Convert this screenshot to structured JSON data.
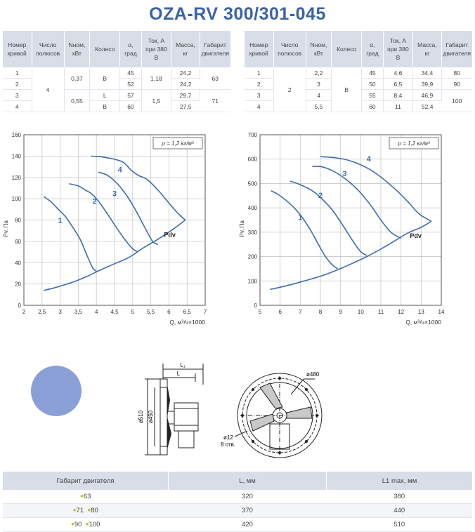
{
  "title": "OZA-RV 300/301-045",
  "table_left": {
    "headers": [
      "Номер кривой",
      "Число полюсов",
      "Nном, кВт",
      "Колесо",
      "α, град",
      "Ток, А при 380 В",
      "Масса, кг",
      "Габарит двигателя"
    ],
    "curve": [
      "1",
      "2",
      "3",
      "4"
    ],
    "poles": "4",
    "power": [
      "0,37",
      "0,55"
    ],
    "wheel": [
      "B",
      "L",
      "B"
    ],
    "angle": [
      "45",
      "52",
      "57",
      "60"
    ],
    "current": [
      "1,18",
      "1,5"
    ],
    "mass": [
      "24,2",
      "24,2",
      "29,7",
      "27,5"
    ],
    "frame": [
      "63",
      "71"
    ]
  },
  "table_right": {
    "headers": [
      "Номер кривой",
      "Число полюсов",
      "Nном, кВт",
      "Колесо",
      "α, град",
      "Ток, А при 380 В",
      "Масса, кг",
      "Габарит двигателя"
    ],
    "curve": [
      "1",
      "2",
      "3",
      "4"
    ],
    "poles": "2",
    "power": [
      "2,2",
      "3",
      "4",
      "5,5"
    ],
    "wheel": "B",
    "angle": [
      "45",
      "50",
      "55",
      "60"
    ],
    "current": [
      "4,6",
      "6,5",
      "8,4",
      "11"
    ],
    "mass": [
      "34,4",
      "39,9",
      "46,9",
      "52,4"
    ],
    "frame": [
      "80",
      "90",
      "100"
    ]
  },
  "chart_data": [
    {
      "type": "line",
      "xlabel": "Q, м³/ч×1000",
      "ylabel": "Pv, Па",
      "xlim": [
        2,
        7
      ],
      "ylim": [
        0,
        160
      ],
      "xticks": [
        "2",
        "2,5",
        "3",
        "3,5",
        "4",
        "4,5",
        "5",
        "5,5",
        "6",
        "6,5",
        "7"
      ],
      "yticks": [
        "0",
        "20",
        "40",
        "60",
        "80",
        "100",
        "120",
        "140",
        "160"
      ],
      "density_label": "ρ = 1,2 кг/м³",
      "grid": true,
      "series": [
        {
          "name": "1",
          "points": [
            [
              2.55,
              102
            ],
            [
              2.75,
              97
            ],
            [
              2.95,
              90
            ],
            [
              3.15,
              83
            ],
            [
              3.35,
              73
            ],
            [
              3.55,
              62
            ],
            [
              3.75,
              46
            ],
            [
              3.9,
              35
            ],
            [
              4.0,
              32
            ]
          ]
        },
        {
          "name": "2",
          "points": [
            [
              3.25,
              114
            ],
            [
              3.5,
              112
            ],
            [
              3.7,
              108
            ],
            [
              3.85,
              105
            ],
            [
              4.05,
              98
            ],
            [
              4.3,
              86
            ],
            [
              4.55,
              73
            ],
            [
              4.8,
              61
            ],
            [
              5.0,
              53
            ],
            [
              5.15,
              50
            ]
          ]
        },
        {
          "name": "3",
          "points": [
            [
              4.05,
              125
            ],
            [
              4.3,
              122
            ],
            [
              4.55,
              115
            ],
            [
              4.75,
              107
            ],
            [
              4.95,
              97
            ],
            [
              5.15,
              85
            ],
            [
              5.35,
              72
            ],
            [
              5.55,
              60
            ],
            [
              5.7,
              57
            ]
          ]
        },
        {
          "name": "4",
          "points": [
            [
              3.85,
              140
            ],
            [
              4.2,
              139
            ],
            [
              4.5,
              137
            ],
            [
              4.75,
              134
            ],
            [
              4.95,
              127
            ],
            [
              5.15,
              122
            ],
            [
              5.4,
              118
            ],
            [
              5.7,
              108
            ],
            [
              5.95,
              98
            ],
            [
              6.2,
              88
            ],
            [
              6.45,
              80
            ]
          ]
        },
        {
          "name": "Pdv",
          "points": [
            [
              2.55,
              14
            ],
            [
              2.8,
              16
            ],
            [
              3.1,
              19
            ],
            [
              3.45,
              23
            ],
            [
              3.8,
              28
            ],
            [
              4.1,
              33
            ],
            [
              4.5,
              39
            ],
            [
              4.9,
              45
            ],
            [
              5.3,
              54
            ],
            [
              5.7,
              62
            ],
            [
              6.1,
              71
            ],
            [
              6.45,
              80
            ]
          ]
        }
      ]
    },
    {
      "type": "line",
      "xlabel": "Q, м³/ч×1000",
      "ylabel": "Pv, Па",
      "xlim": [
        5,
        14
      ],
      "ylim": [
        0,
        700
      ],
      "xticks": [
        "5",
        "6",
        "7",
        "8",
        "9",
        "10",
        "11",
        "12",
        "13",
        "14"
      ],
      "yticks": [
        "0",
        "100",
        "200",
        "300",
        "400",
        "500",
        "600",
        "700"
      ],
      "density_label": "ρ = 1,2 кг/м³",
      "grid": true,
      "series": [
        {
          "name": "1",
          "points": [
            [
              5.55,
              470
            ],
            [
              5.9,
              455
            ],
            [
              6.3,
              430
            ],
            [
              6.7,
              400
            ],
            [
              7.1,
              360
            ],
            [
              7.5,
              310
            ],
            [
              7.9,
              250
            ],
            [
              8.25,
              200
            ],
            [
              8.6,
              165
            ],
            [
              8.85,
              150
            ]
          ]
        },
        {
          "name": "2",
          "points": [
            [
              6.5,
              510
            ],
            [
              7.0,
              495
            ],
            [
              7.6,
              470
            ],
            [
              8.1,
              435
            ],
            [
              8.6,
              390
            ],
            [
              9.1,
              330
            ],
            [
              9.6,
              265
            ],
            [
              10.0,
              220
            ],
            [
              10.3,
              205
            ]
          ]
        },
        {
          "name": "3",
          "points": [
            [
              7.6,
              570
            ],
            [
              8.1,
              568
            ],
            [
              8.7,
              548
            ],
            [
              9.3,
              515
            ],
            [
              9.9,
              470
            ],
            [
              10.5,
              410
            ],
            [
              11.0,
              350
            ],
            [
              11.5,
              300
            ],
            [
              12.0,
              275
            ]
          ]
        },
        {
          "name": "4",
          "points": [
            [
              8.0,
              610
            ],
            [
              8.8,
              605
            ],
            [
              9.6,
              590
            ],
            [
              10.4,
              560
            ],
            [
              11.1,
              520
            ],
            [
              11.8,
              470
            ],
            [
              12.4,
              420
            ],
            [
              12.9,
              375
            ],
            [
              13.5,
              345
            ]
          ]
        },
        {
          "name": "Pdv",
          "points": [
            [
              5.5,
              65
            ],
            [
              6.3,
              80
            ],
            [
              7.2,
              100
            ],
            [
              8.2,
              125
            ],
            [
              9.2,
              158
            ],
            [
              10.3,
              200
            ],
            [
              11.3,
              245
            ],
            [
              12.3,
              295
            ],
            [
              13.0,
              320
            ],
            [
              13.5,
              345
            ]
          ]
        }
      ]
    }
  ],
  "drawing": {
    "l1_label": "L₁",
    "l_label": "L",
    "d510_label": "ø510",
    "d450_label": "ø450",
    "d480_label": "ø480",
    "d12_label": "ø12",
    "holes_label": "8 отв."
  },
  "dims_table": {
    "headers": [
      "Габарит двигателя",
      "L, мм",
      "L1 max, мм"
    ],
    "rows": [
      {
        "frame": [
          "63"
        ],
        "L": "320",
        "L1": "380"
      },
      {
        "frame": [
          "71",
          "80"
        ],
        "L": "370",
        "L1": "440"
      },
      {
        "frame": [
          "90",
          "100"
        ],
        "L": "420",
        "L1": "510"
      }
    ]
  },
  "colors": {
    "accent": "#3a63a8",
    "curve": "#3d6db0",
    "header_bg": "#d8dde8",
    "circle": "#8a9fd6"
  }
}
